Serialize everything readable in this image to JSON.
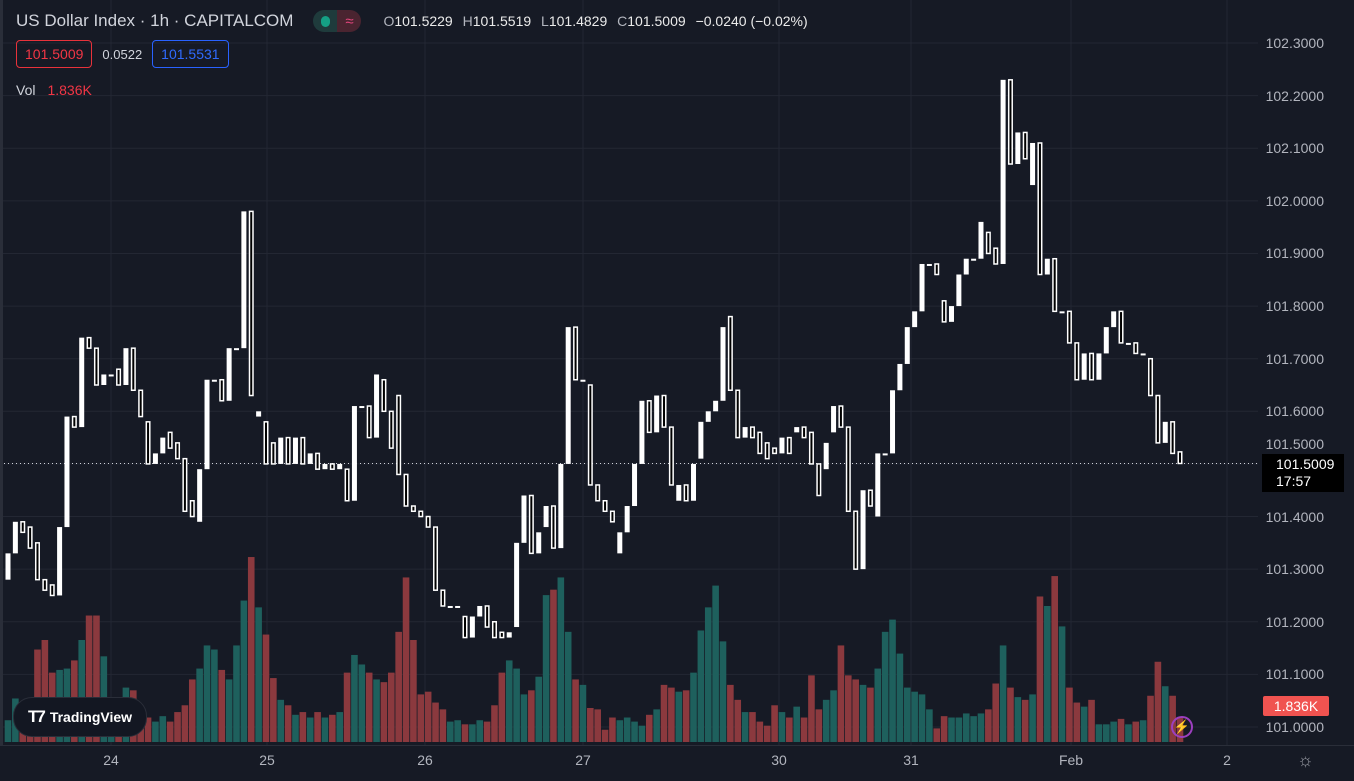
{
  "header": {
    "title": "US Dollar Index · 1h · CAPITALCOM",
    "ohlc": {
      "o_label": "O",
      "o": "101.5229",
      "h_label": "H",
      "h": "101.5519",
      "l_label": "L",
      "l": "101.4829",
      "c_label": "C",
      "c": "101.5009",
      "change": "−0.0240 (−0.02%)"
    },
    "bid": "101.5009",
    "spread": "0.0522",
    "ask": "101.5531",
    "vol_label": "Vol",
    "vol_value": "1.836K"
  },
  "axis": {
    "price_ticks": [
      "102.3000",
      "102.2000",
      "102.1000",
      "102.0000",
      "101.9000",
      "101.8000",
      "101.7000",
      "101.6000",
      "101.5000",
      "101.4000",
      "101.3000",
      "101.2000",
      "101.1000",
      "101.0000"
    ],
    "time_ticks": [
      "24",
      "25",
      "26",
      "27",
      "30",
      "31",
      "Feb",
      "2"
    ],
    "last_price": "101.5009",
    "countdown": "17:57",
    "last_volume": "1.836K"
  },
  "logo": {
    "text": "TradingView"
  },
  "colors": {
    "up_volume": "#1e605d",
    "down_volume": "#8b393e",
    "candle": "#ffffff",
    "bid": "#f23645",
    "ask": "#2962ff",
    "background": "#161a25"
  },
  "chart_data": {
    "type": "candlestick",
    "title": "US Dollar Index · 1h · CAPITALCOM",
    "ylim": [
      101.0,
      102.3
    ],
    "volume_unit": "K",
    "columns": [
      "open",
      "close",
      "volume"
    ],
    "candles": [
      [
        101.28,
        101.33,
        1.6
      ],
      [
        101.33,
        101.39,
        3.2
      ],
      [
        101.39,
        101.37,
        2.7
      ],
      [
        101.38,
        101.34,
        2.9
      ],
      [
        101.35,
        101.28,
        6.8
      ],
      [
        101.28,
        101.26,
        7.5
      ],
      [
        101.27,
        101.25,
        5.1
      ],
      [
        101.25,
        101.38,
        5.3
      ],
      [
        101.38,
        101.59,
        5.4
      ],
      [
        101.59,
        101.57,
        6.0
      ],
      [
        101.57,
        101.74,
        7.5
      ],
      [
        101.74,
        101.72,
        9.3
      ],
      [
        101.72,
        101.65,
        9.3
      ],
      [
        101.65,
        101.67,
        6.3
      ],
      [
        101.67,
        101.67,
        3.1
      ],
      [
        101.68,
        101.65,
        2.4
      ],
      [
        101.65,
        101.72,
        4.0
      ],
      [
        101.72,
        101.64,
        3.8
      ],
      [
        101.64,
        101.59,
        2.0
      ],
      [
        101.58,
        101.5,
        1.8
      ],
      [
        101.5,
        101.52,
        1.5
      ],
      [
        101.52,
        101.55,
        1.9
      ],
      [
        101.56,
        101.53,
        1.5
      ],
      [
        101.54,
        101.51,
        2.2
      ],
      [
        101.51,
        101.41,
        2.7
      ],
      [
        101.43,
        101.4,
        4.6
      ],
      [
        101.39,
        101.49,
        5.4
      ],
      [
        101.49,
        101.66,
        7.1
      ],
      [
        101.66,
        101.66,
        6.8
      ],
      [
        101.66,
        101.62,
        5.3
      ],
      [
        101.62,
        101.72,
        4.6
      ],
      [
        101.72,
        101.72,
        7.1
      ],
      [
        101.72,
        101.98,
        10.4
      ],
      [
        101.98,
        101.63,
        13.6
      ],
      [
        101.59,
        101.6,
        9.9
      ],
      [
        101.58,
        101.5,
        7.9
      ],
      [
        101.54,
        101.5,
        4.7
      ],
      [
        101.5,
        101.55,
        3.1
      ],
      [
        101.55,
        101.5,
        2.7
      ],
      [
        101.5,
        101.55,
        2.0
      ],
      [
        101.55,
        101.5,
        2.2
      ],
      [
        101.5,
        101.52,
        1.8
      ],
      [
        101.52,
        101.49,
        2.2
      ],
      [
        101.49,
        101.5,
        1.8
      ],
      [
        101.5,
        101.49,
        2.0
      ],
      [
        101.49,
        101.5,
        2.2
      ],
      [
        101.49,
        101.43,
        5.1
      ],
      [
        101.43,
        101.61,
        6.4
      ],
      [
        101.61,
        101.61,
        5.7
      ],
      [
        101.61,
        101.55,
        5.1
      ],
      [
        101.55,
        101.67,
        4.6
      ],
      [
        101.66,
        101.6,
        4.4
      ],
      [
        101.6,
        101.53,
        5.1
      ],
      [
        101.63,
        101.48,
        8.1
      ],
      [
        101.48,
        101.42,
        12.1
      ],
      [
        101.42,
        101.41,
        7.5
      ],
      [
        101.41,
        101.4,
        3.5
      ],
      [
        101.4,
        101.38,
        3.7
      ],
      [
        101.38,
        101.26,
        2.9
      ],
      [
        101.26,
        101.23,
        2.4
      ],
      [
        101.23,
        101.23,
        1.5
      ],
      [
        101.23,
        101.23,
        1.6
      ],
      [
        101.21,
        101.17,
        1.3
      ],
      [
        101.17,
        101.21,
        1.3
      ],
      [
        101.21,
        101.23,
        1.6
      ],
      [
        101.23,
        101.19,
        1.5
      ],
      [
        101.2,
        101.17,
        2.7
      ],
      [
        101.18,
        101.17,
        5.1
      ],
      [
        101.17,
        101.18,
        6.0
      ],
      [
        101.19,
        101.35,
        5.4
      ],
      [
        101.35,
        101.44,
        3.5
      ],
      [
        101.44,
        101.33,
        3.8
      ],
      [
        101.33,
        101.37,
        4.8
      ],
      [
        101.38,
        101.42,
        10.8
      ],
      [
        101.42,
        101.34,
        11.2
      ],
      [
        101.34,
        101.5,
        12.1
      ],
      [
        101.5,
        101.76,
        8.1
      ],
      [
        101.76,
        101.66,
        4.6
      ],
      [
        101.66,
        101.66,
        4.2
      ],
      [
        101.65,
        101.46,
        2.5
      ],
      [
        101.46,
        101.43,
        2.4
      ],
      [
        101.43,
        101.41,
        0.9
      ],
      [
        101.41,
        101.39,
        1.8
      ],
      [
        101.33,
        101.37,
        1.6
      ],
      [
        101.37,
        101.42,
        1.8
      ],
      [
        101.42,
        101.5,
        1.5
      ],
      [
        101.5,
        101.62,
        1.2
      ],
      [
        101.62,
        101.56,
        2.0
      ],
      [
        101.56,
        101.63,
        2.4
      ],
      [
        101.63,
        101.57,
        4.2
      ],
      [
        101.57,
        101.46,
        4.0
      ],
      [
        101.43,
        101.46,
        3.7
      ],
      [
        101.46,
        101.43,
        3.8
      ],
      [
        101.43,
        101.5,
        5.1
      ],
      [
        101.51,
        101.58,
        8.2
      ],
      [
        101.58,
        101.6,
        9.9
      ],
      [
        101.6,
        101.62,
        11.5
      ],
      [
        101.62,
        101.76,
        7.4
      ],
      [
        101.78,
        101.64,
        4.2
      ],
      [
        101.64,
        101.55,
        3.1
      ],
      [
        101.55,
        101.57,
        2.2
      ],
      [
        101.57,
        101.55,
        2.2
      ],
      [
        101.56,
        101.52,
        1.5
      ],
      [
        101.54,
        101.51,
        1.2
      ],
      [
        101.53,
        101.52,
        2.7
      ],
      [
        101.52,
        101.55,
        2.2
      ],
      [
        101.55,
        101.52,
        1.8
      ],
      [
        101.56,
        101.57,
        2.6
      ],
      [
        101.57,
        101.55,
        1.8
      ],
      [
        101.56,
        101.5,
        4.9
      ],
      [
        101.5,
        101.44,
        2.4
      ],
      [
        101.49,
        101.54,
        3.1
      ],
      [
        101.56,
        101.61,
        3.8
      ],
      [
        101.61,
        101.57,
        7.1
      ],
      [
        101.57,
        101.41,
        4.9
      ],
      [
        101.41,
        101.3,
        4.6
      ],
      [
        101.3,
        101.45,
        4.2
      ],
      [
        101.45,
        101.42,
        4.0
      ],
      [
        101.4,
        101.52,
        5.4
      ],
      [
        101.52,
        101.52,
        8.1
      ],
      [
        101.52,
        101.64,
        9.0
      ],
      [
        101.64,
        101.69,
        6.5
      ],
      [
        101.69,
        101.76,
        4.0
      ],
      [
        101.76,
        101.79,
        3.7
      ],
      [
        101.79,
        101.88,
        3.5
      ],
      [
        101.88,
        101.88,
        2.4
      ],
      [
        101.88,
        101.86,
        1.0
      ],
      [
        101.81,
        101.77,
        1.9
      ],
      [
        101.77,
        101.8,
        1.8
      ],
      [
        101.8,
        101.86,
        1.8
      ],
      [
        101.86,
        101.89,
        2.1
      ],
      [
        101.89,
        101.89,
        1.9
      ],
      [
        101.89,
        101.96,
        2.1
      ],
      [
        101.94,
        101.9,
        2.4
      ],
      [
        101.91,
        101.88,
        4.3
      ],
      [
        101.88,
        102.23,
        7.1
      ],
      [
        102.23,
        102.07,
        4.0
      ],
      [
        102.07,
        102.13,
        3.3
      ],
      [
        102.13,
        102.08,
        3.1
      ],
      [
        102.03,
        102.11,
        3.5
      ],
      [
        102.11,
        101.86,
        10.7
      ],
      [
        101.86,
        101.89,
        10.0
      ],
      [
        101.89,
        101.79,
        12.2
      ],
      [
        101.79,
        101.79,
        8.5
      ],
      [
        101.79,
        101.73,
        4.0
      ],
      [
        101.73,
        101.66,
        2.9
      ],
      [
        101.66,
        101.71,
        2.6
      ],
      [
        101.71,
        101.66,
        3.1
      ],
      [
        101.66,
        101.71,
        1.3
      ],
      [
        101.71,
        101.76,
        1.3
      ],
      [
        101.76,
        101.79,
        1.5
      ],
      [
        101.79,
        101.73,
        1.7
      ],
      [
        101.73,
        101.73,
        1.3
      ],
      [
        101.73,
        101.71,
        1.5
      ],
      [
        101.71,
        101.71,
        1.6
      ],
      [
        101.7,
        101.63,
        3.4
      ],
      [
        101.63,
        101.54,
        5.9
      ],
      [
        101.54,
        101.58,
        4.1
      ],
      [
        101.58,
        101.52,
        3.4
      ],
      [
        101.5229,
        101.5009,
        1.836
      ]
    ]
  }
}
